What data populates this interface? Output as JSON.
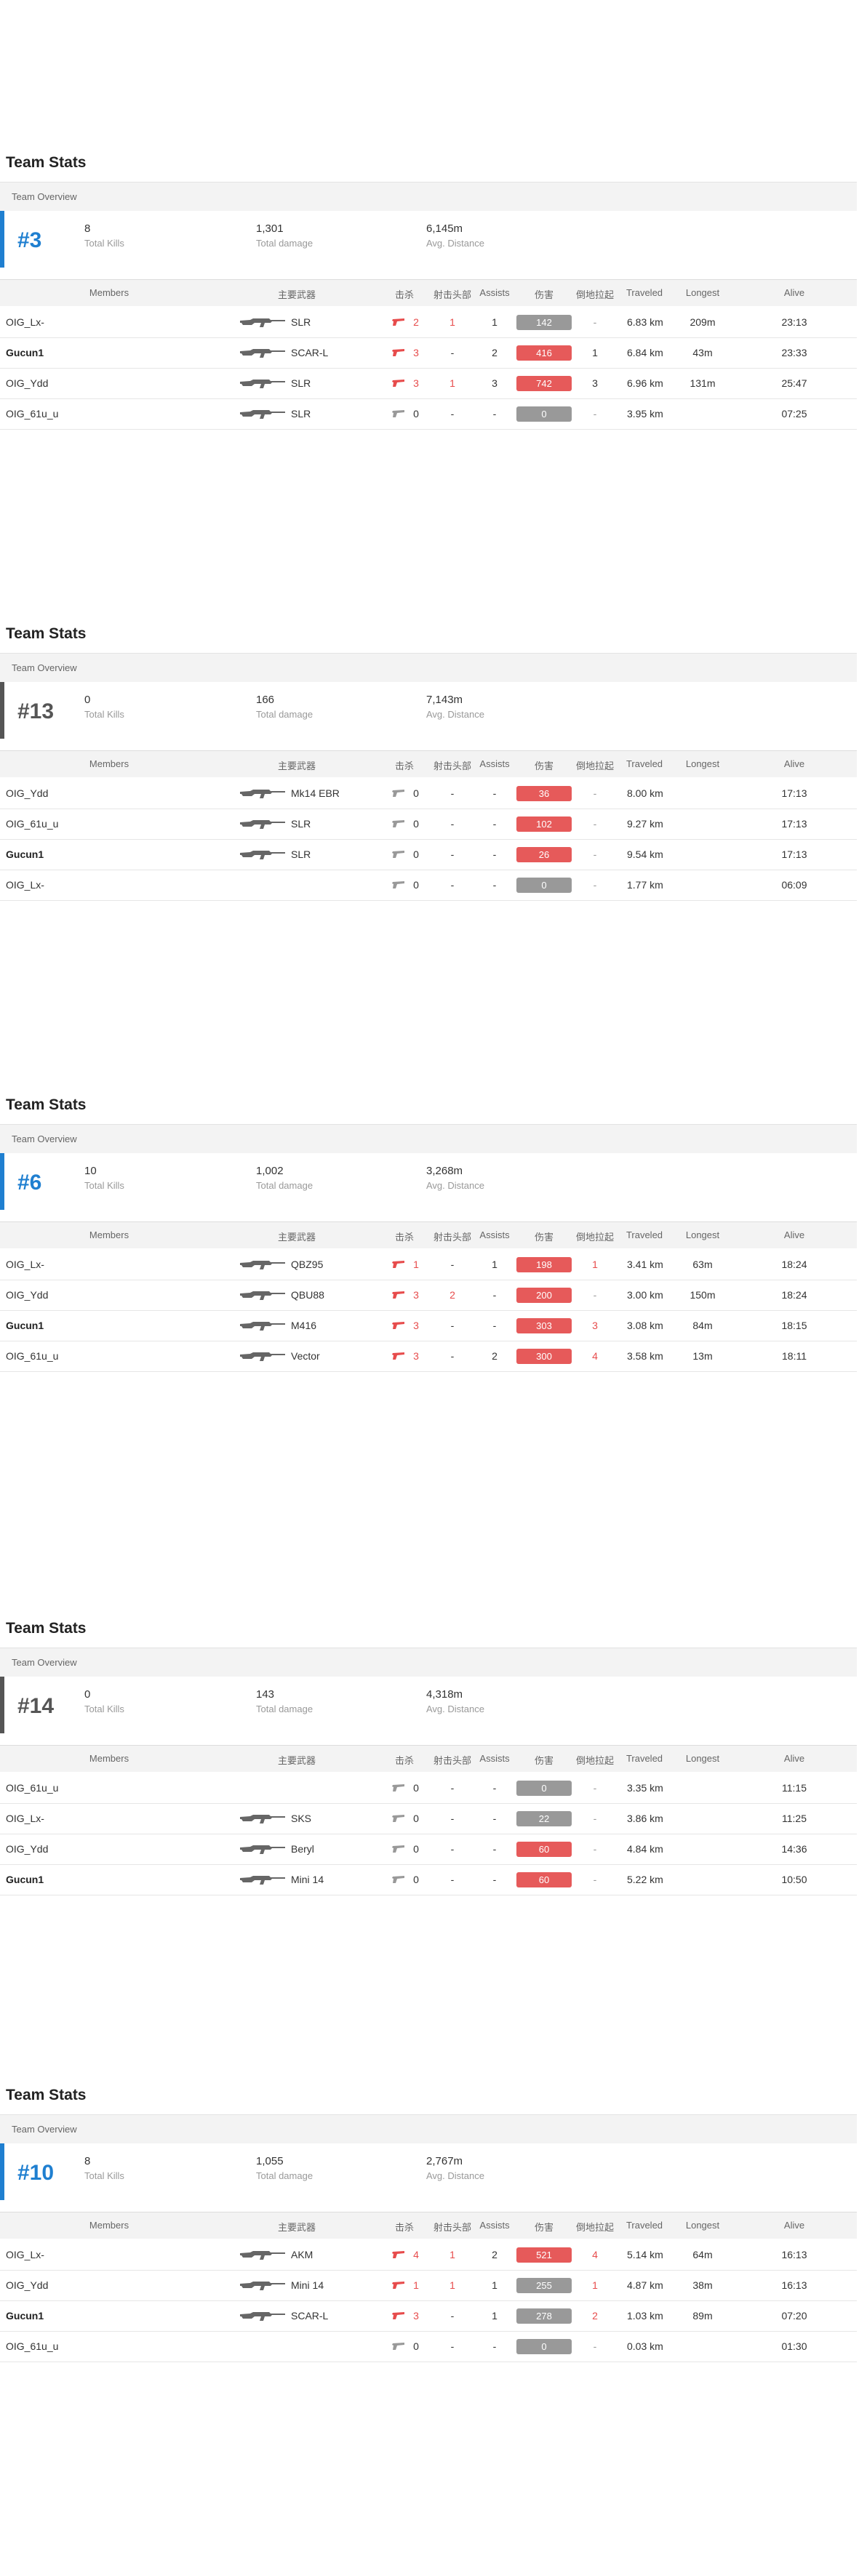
{
  "section_title": "Team Stats",
  "overview_label": "Team Overview",
  "stat_labels": {
    "kills": "Total Kills",
    "damage": "Total damage",
    "distance": "Avg. Distance"
  },
  "columns": [
    "Members",
    "主要武器",
    "击杀",
    "射击头部",
    "Assists",
    "伤害",
    "倒地拉起",
    "Traveled",
    "Longest",
    "Alive"
  ],
  "colors": {
    "accent_blue": "#1f7fd0",
    "accent_gray": "#555555",
    "red": "#e74c4c",
    "damage_red": "#e65a5a",
    "damage_gray": "#999999"
  },
  "teams": [
    {
      "rank": "#3",
      "accent": "blue",
      "kills": "8",
      "damage": "1,301",
      "distance": "6,145m",
      "members": [
        {
          "name": "OIG_Lx-",
          "bold": false,
          "weapon": "SLR",
          "kills": "2",
          "headshots": "1",
          "assists": "1",
          "damage": "142",
          "damage_color": "gray",
          "revives": "-",
          "traveled": "6.83 km",
          "longest": "209m",
          "alive": "23:13"
        },
        {
          "name": "Gucun1",
          "bold": true,
          "weapon": "SCAR-L",
          "kills": "3",
          "headshots": "-",
          "assists": "2",
          "damage": "416",
          "damage_color": "red",
          "revives": "1",
          "traveled": "6.84 km",
          "longest": "43m",
          "alive": "23:33"
        },
        {
          "name": "OIG_Ydd",
          "bold": false,
          "weapon": "SLR",
          "kills": "3",
          "headshots": "1",
          "assists": "3",
          "damage": "742",
          "damage_color": "red",
          "revives": "3",
          "traveled": "6.96 km",
          "longest": "131m",
          "alive": "25:47"
        },
        {
          "name": "OIG_61u_u",
          "bold": false,
          "weapon": "SLR",
          "kills": "0",
          "headshots": "-",
          "assists": "-",
          "damage": "0",
          "damage_color": "gray",
          "revives": "-",
          "traveled": "3.95 km",
          "longest": "",
          "alive": "07:25"
        }
      ]
    },
    {
      "rank": "#13",
      "accent": "gray",
      "kills": "0",
      "damage": "166",
      "distance": "7,143m",
      "members": [
        {
          "name": "OIG_Ydd",
          "bold": false,
          "weapon": "Mk14 EBR",
          "kills": "0",
          "headshots": "-",
          "assists": "-",
          "damage": "36",
          "damage_color": "red",
          "revives": "-",
          "traveled": "8.00 km",
          "longest": "",
          "alive": "17:13"
        },
        {
          "name": "OIG_61u_u",
          "bold": false,
          "weapon": "SLR",
          "kills": "0",
          "headshots": "-",
          "assists": "-",
          "damage": "102",
          "damage_color": "red",
          "revives": "-",
          "traveled": "9.27 km",
          "longest": "",
          "alive": "17:13"
        },
        {
          "name": "Gucun1",
          "bold": true,
          "weapon": "SLR",
          "kills": "0",
          "headshots": "-",
          "assists": "-",
          "damage": "26",
          "damage_color": "red",
          "revives": "-",
          "traveled": "9.54 km",
          "longest": "",
          "alive": "17:13"
        },
        {
          "name": "OIG_Lx-",
          "bold": false,
          "weapon": "",
          "kills": "0",
          "headshots": "-",
          "assists": "-",
          "damage": "0",
          "damage_color": "gray",
          "revives": "-",
          "traveled": "1.77 km",
          "longest": "",
          "alive": "06:09"
        }
      ]
    },
    {
      "rank": "#6",
      "accent": "blue",
      "kills": "10",
      "damage": "1,002",
      "distance": "3,268m",
      "members": [
        {
          "name": "OIG_Lx-",
          "bold": false,
          "weapon": "QBZ95",
          "kills": "1",
          "headshots": "-",
          "assists": "1",
          "damage": "198",
          "damage_color": "red",
          "revives": "1",
          "traveled": "3.41 km",
          "longest": "63m",
          "alive": "18:24"
        },
        {
          "name": "OIG_Ydd",
          "bold": false,
          "weapon": "QBU88",
          "kills": "3",
          "headshots": "2",
          "assists": "-",
          "damage": "200",
          "damage_color": "red",
          "revives": "-",
          "traveled": "3.00 km",
          "longest": "150m",
          "alive": "18:24"
        },
        {
          "name": "Gucun1",
          "bold": true,
          "weapon": "M416",
          "kills": "3",
          "headshots": "-",
          "assists": "-",
          "damage": "303",
          "damage_color": "red",
          "revives": "3",
          "traveled": "3.08 km",
          "longest": "84m",
          "alive": "18:15"
        },
        {
          "name": "OIG_61u_u",
          "bold": false,
          "weapon": "Vector",
          "kills": "3",
          "headshots": "-",
          "assists": "2",
          "damage": "300",
          "damage_color": "red",
          "revives": "4",
          "traveled": "3.58 km",
          "longest": "13m",
          "alive": "18:11"
        }
      ]
    },
    {
      "rank": "#14",
      "accent": "gray",
      "kills": "0",
      "damage": "143",
      "distance": "4,318m",
      "members": [
        {
          "name": "OIG_61u_u",
          "bold": false,
          "weapon": "",
          "kills": "0",
          "headshots": "-",
          "assists": "-",
          "damage": "0",
          "damage_color": "gray",
          "revives": "-",
          "traveled": "3.35 km",
          "longest": "",
          "alive": "11:15"
        },
        {
          "name": "OIG_Lx-",
          "bold": false,
          "weapon": "SKS",
          "kills": "0",
          "headshots": "-",
          "assists": "-",
          "damage": "22",
          "damage_color": "gray",
          "revives": "-",
          "traveled": "3.86 km",
          "longest": "",
          "alive": "11:25"
        },
        {
          "name": "OIG_Ydd",
          "bold": false,
          "weapon": "Beryl",
          "kills": "0",
          "headshots": "-",
          "assists": "-",
          "damage": "60",
          "damage_color": "red",
          "revives": "-",
          "traveled": "4.84 km",
          "longest": "",
          "alive": "14:36"
        },
        {
          "name": "Gucun1",
          "bold": true,
          "weapon": "Mini 14",
          "kills": "0",
          "headshots": "-",
          "assists": "-",
          "damage": "60",
          "damage_color": "red",
          "revives": "-",
          "traveled": "5.22 km",
          "longest": "",
          "alive": "10:50"
        }
      ]
    },
    {
      "rank": "#10",
      "accent": "blue",
      "kills": "8",
      "damage": "1,055",
      "distance": "2,767m",
      "members": [
        {
          "name": "OIG_Lx-",
          "bold": false,
          "weapon": "AKM",
          "kills": "4",
          "headshots": "1",
          "assists": "2",
          "damage": "521",
          "damage_color": "red",
          "revives": "4",
          "traveled": "5.14 km",
          "longest": "64m",
          "alive": "16:13"
        },
        {
          "name": "OIG_Ydd",
          "bold": false,
          "weapon": "Mini 14",
          "kills": "1",
          "headshots": "1",
          "assists": "1",
          "damage": "255",
          "damage_color": "gray",
          "revives": "1",
          "traveled": "4.87 km",
          "longest": "38m",
          "alive": "16:13"
        },
        {
          "name": "Gucun1",
          "bold": true,
          "weapon": "SCAR-L",
          "kills": "3",
          "headshots": "-",
          "assists": "1",
          "damage": "278",
          "damage_color": "gray",
          "revives": "2",
          "traveled": "1.03 km",
          "longest": "89m",
          "alive": "07:20"
        },
        {
          "name": "OIG_61u_u",
          "bold": false,
          "weapon": "",
          "kills": "0",
          "headshots": "-",
          "assists": "-",
          "damage": "0",
          "damage_color": "gray",
          "revives": "-",
          "traveled": "0.03 km",
          "longest": "",
          "alive": "01:30"
        }
      ]
    }
  ]
}
